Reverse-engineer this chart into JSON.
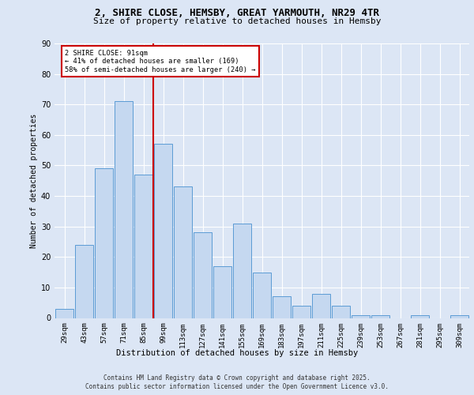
{
  "title1": "2, SHIRE CLOSE, HEMSBY, GREAT YARMOUTH, NR29 4TR",
  "title2": "Size of property relative to detached houses in Hemsby",
  "xlabel": "Distribution of detached houses by size in Hemsby",
  "ylabel": "Number of detached properties",
  "categories": [
    "29sqm",
    "43sqm",
    "57sqm",
    "71sqm",
    "85sqm",
    "99sqm",
    "113sqm",
    "127sqm",
    "141sqm",
    "155sqm",
    "169sqm",
    "183sqm",
    "197sqm",
    "211sqm",
    "225sqm",
    "239sqm",
    "253sqm",
    "267sqm",
    "281sqm",
    "295sqm",
    "309sqm"
  ],
  "values": [
    3,
    24,
    49,
    71,
    47,
    57,
    43,
    28,
    17,
    31,
    15,
    7,
    4,
    8,
    4,
    1,
    1,
    0,
    1,
    0,
    1
  ],
  "bar_color": "#c5d8f0",
  "bar_edge_color": "#5b9bd5",
  "vline_color": "#cc0000",
  "annotation_text": "2 SHIRE CLOSE: 91sqm\n← 41% of detached houses are smaller (169)\n58% of semi-detached houses are larger (240) →",
  "annotation_box_color": "#ffffff",
  "annotation_box_edge": "#cc0000",
  "footer1": "Contains HM Land Registry data © Crown copyright and database right 2025.",
  "footer2": "Contains public sector information licensed under the Open Government Licence v3.0.",
  "background_color": "#dce6f5",
  "plot_bg_color": "#dce6f5",
  "ylim": [
    0,
    90
  ],
  "yticks": [
    0,
    10,
    20,
    30,
    40,
    50,
    60,
    70,
    80,
    90
  ],
  "grid_color": "#ffffff",
  "title1_fontsize": 9,
  "title2_fontsize": 8,
  "ylabel_fontsize": 7,
  "xlabel_fontsize": 7.5,
  "tick_fontsize": 6.5,
  "footer_fontsize": 5.5
}
